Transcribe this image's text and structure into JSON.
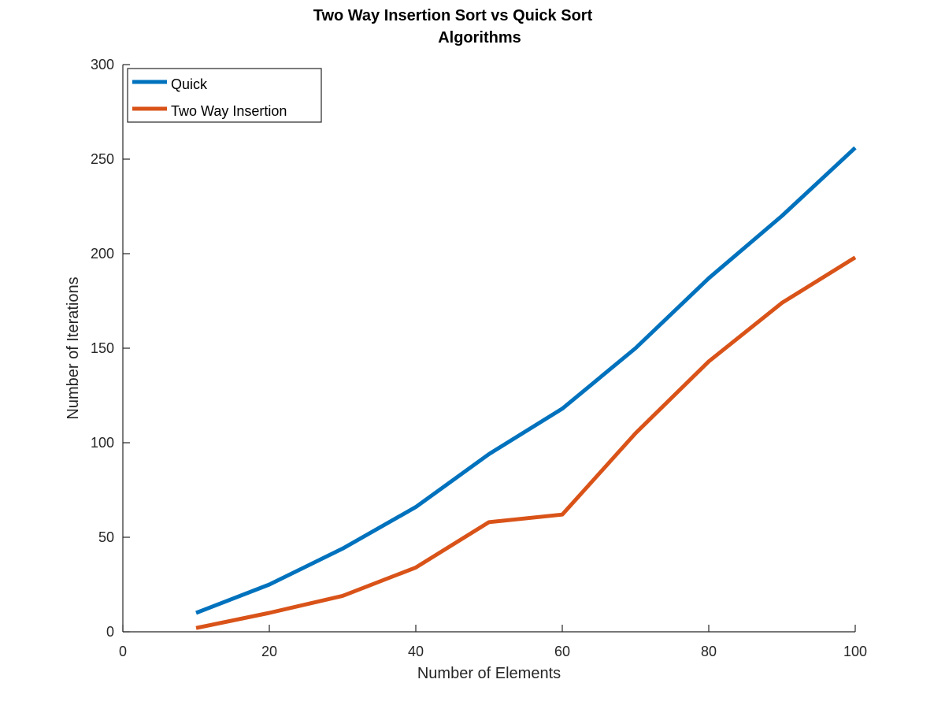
{
  "chart_data": {
    "type": "line",
    "title": [
      "Two Way Insertion Sort vs Quick Sort",
      "Algorithms"
    ],
    "xlabel": "Number of Elements",
    "ylabel": "Number of Iterations",
    "xlim": [
      0,
      100
    ],
    "ylim": [
      0,
      300
    ],
    "xticks": [
      0,
      20,
      40,
      60,
      80,
      100
    ],
    "yticks": [
      0,
      50,
      100,
      150,
      200,
      250,
      300
    ],
    "grid": false,
    "legend_position": "top-left",
    "x": [
      10,
      20,
      30,
      40,
      50,
      60,
      70,
      80,
      90,
      100
    ],
    "series": [
      {
        "name": "Quick",
        "color": "#0072BD",
        "values": [
          10,
          25,
          44,
          66,
          94,
          118,
          150,
          187,
          220,
          256
        ]
      },
      {
        "name": "Two Way Insertion",
        "color": "#D95319",
        "values": [
          2,
          10,
          19,
          34,
          58,
          62,
          105,
          143,
          174,
          198
        ]
      }
    ]
  }
}
